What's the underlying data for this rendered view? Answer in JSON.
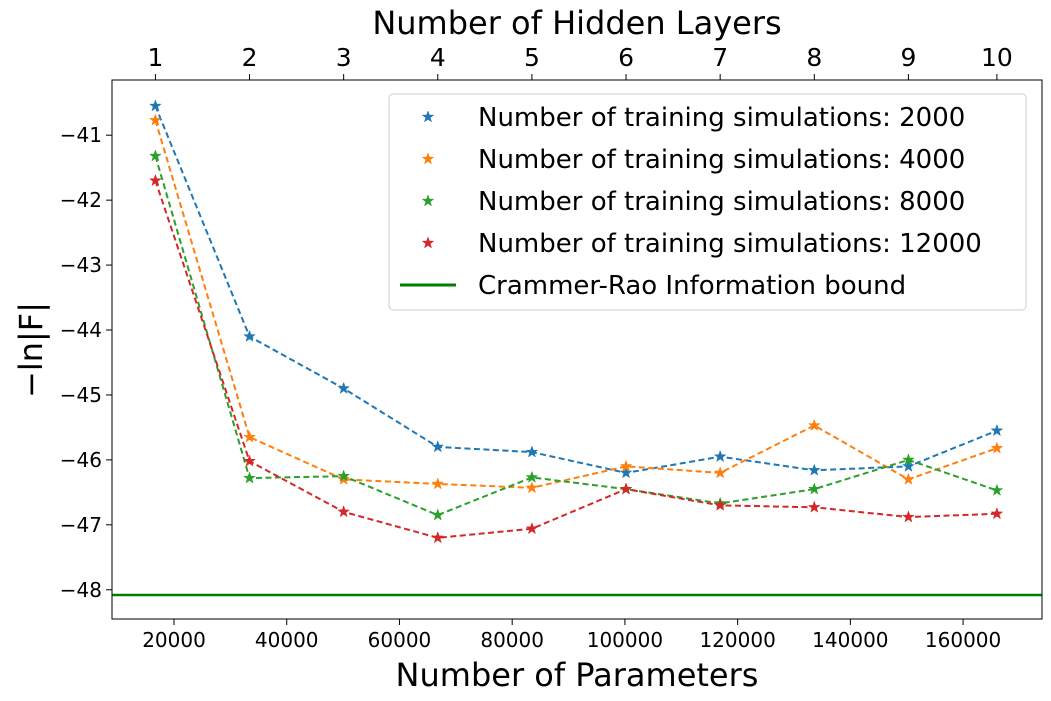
{
  "chart_data": {
    "type": "line",
    "xlabel": "Number of Parameters",
    "ylabel": "−ln|F|",
    "top_xlabel": "Number of Hidden Layers",
    "xlim": [
      9000,
      174000
    ],
    "ylim": [
      -48.45,
      -40.15
    ],
    "xticks": [
      20000,
      40000,
      60000,
      80000,
      100000,
      120000,
      140000,
      160000
    ],
    "xtick_labels": [
      "20000",
      "40000",
      "60000",
      "80000",
      "100000",
      "120000",
      "140000",
      "160000"
    ],
    "yticks": [
      -41,
      -42,
      -43,
      -44,
      -45,
      -46,
      -47,
      -48
    ],
    "ytick_labels": [
      "−41",
      "−42",
      "−43",
      "−44",
      "−45",
      "−46",
      "−47",
      "−48"
    ],
    "top_ticks": [
      16700,
      33400,
      50100,
      66800,
      83500,
      100200,
      116900,
      133600,
      150300,
      166000
    ],
    "top_tick_labels": [
      "1",
      "2",
      "3",
      "4",
      "5",
      "6",
      "7",
      "8",
      "9",
      "10"
    ],
    "x": [
      16700,
      33400,
      50100,
      66800,
      83500,
      100200,
      116900,
      133600,
      150300,
      166000
    ],
    "series": [
      {
        "name": "Number of training simulations: 2000",
        "color": "#1f77b4",
        "values": [
          -40.55,
          -44.1,
          -44.9,
          -45.8,
          -45.88,
          -46.2,
          -45.95,
          -46.16,
          -46.1,
          -45.55
        ]
      },
      {
        "name": "Number of training simulations: 4000",
        "color": "#ff7f0e",
        "values": [
          -40.77,
          -45.65,
          -46.3,
          -46.37,
          -46.43,
          -46.1,
          -46.2,
          -45.47,
          -46.3,
          -45.82
        ]
      },
      {
        "name": "Number of training simulations: 8000",
        "color": "#2ca02c",
        "values": [
          -41.32,
          -46.28,
          -46.25,
          -46.85,
          -46.27,
          -46.45,
          -46.67,
          -46.45,
          -46.0,
          -46.47
        ]
      },
      {
        "name": "Number of training simulations: 12000",
        "color": "#d62728",
        "values": [
          -41.7,
          -46.02,
          -46.8,
          -47.2,
          -47.06,
          -46.45,
          -46.7,
          -46.73,
          -46.88,
          -46.83
        ]
      }
    ],
    "hline": {
      "name": "Crammer-Rao Information bound",
      "value": -48.08,
      "color": "#008000"
    },
    "legend_position": "upper-right",
    "grid": false
  }
}
